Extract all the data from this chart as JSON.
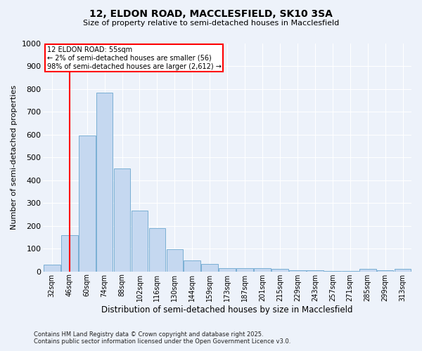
{
  "title1": "12, ELDON ROAD, MACCLESFIELD, SK10 3SA",
  "title2": "Size of property relative to semi-detached houses in Macclesfield",
  "xlabel": "Distribution of semi-detached houses by size in Macclesfield",
  "ylabel": "Number of semi-detached properties",
  "categories": [
    "32sqm",
    "46sqm",
    "60sqm",
    "74sqm",
    "88sqm",
    "102sqm",
    "116sqm",
    "130sqm",
    "144sqm",
    "159sqm",
    "173sqm",
    "187sqm",
    "201sqm",
    "215sqm",
    "229sqm",
    "243sqm",
    "257sqm",
    "271sqm",
    "285sqm",
    "299sqm",
    "313sqm"
  ],
  "values": [
    30,
    158,
    595,
    782,
    452,
    267,
    190,
    98,
    47,
    33,
    15,
    15,
    14,
    12,
    5,
    4,
    3,
    3,
    10,
    5,
    12
  ],
  "bar_color": "#c5d8f0",
  "bar_edge_color": "#7aafd4",
  "vline_pos": 1.5,
  "vline_color": "red",
  "ann_title": "12 ELDON ROAD: 55sqm",
  "ann_line1": "← 2% of semi-detached houses are smaller (56)",
  "ann_line2": "98% of semi-detached houses are larger (2,612) →",
  "ann_box_facecolor": "white",
  "ann_box_edgecolor": "red",
  "ylim": [
    0,
    1000
  ],
  "yticks": [
    0,
    100,
    200,
    300,
    400,
    500,
    600,
    700,
    800,
    900,
    1000
  ],
  "bg_color": "#edf2fa",
  "grid_color": "white",
  "footnote1": "Contains HM Land Registry data © Crown copyright and database right 2025.",
  "footnote2": "Contains public sector information licensed under the Open Government Licence v3.0."
}
